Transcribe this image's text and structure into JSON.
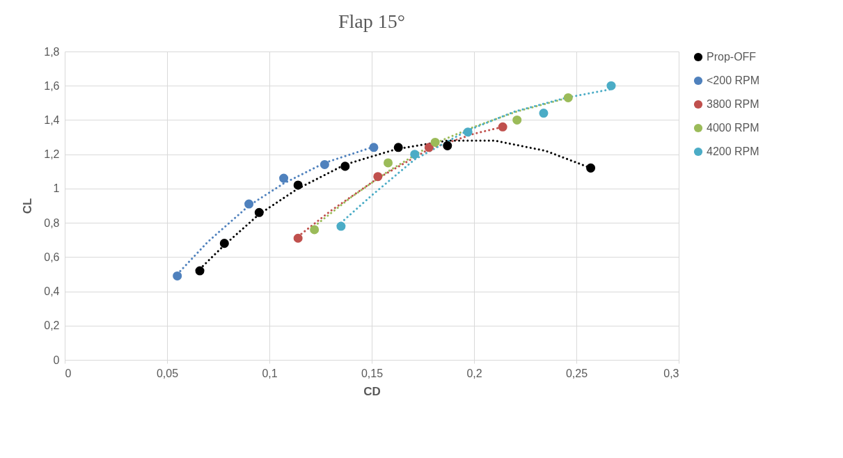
{
  "chart_data": {
    "type": "scatter",
    "title": "Flap 15°",
    "xlabel": "CD",
    "ylabel": "CL",
    "xlim": [
      0,
      0.3
    ],
    "ylim": [
      0,
      1.8
    ],
    "xticks": [
      0,
      {
        "value": 0.05,
        "label": "0,05"
      },
      {
        "value": 0.1,
        "label": "0,1"
      },
      {
        "value": 0.15,
        "label": "0,15"
      },
      {
        "value": 0.2,
        "label": "0,2"
      },
      {
        "value": 0.25,
        "label": "0,25"
      },
      {
        "value": 0.3,
        "label": "0,3"
      }
    ],
    "yticks": [
      0,
      {
        "value": 0.2,
        "label": "0,2"
      },
      {
        "value": 0.4,
        "label": "0,4"
      },
      {
        "value": 0.6,
        "label": "0,6"
      },
      {
        "value": 0.8,
        "label": "0,8"
      },
      1,
      {
        "value": 1.2,
        "label": "1,2"
      },
      {
        "value": 1.4,
        "label": "1,4"
      },
      {
        "value": 1.6,
        "label": "1,6"
      },
      {
        "value": 1.8,
        "label": "1,8"
      }
    ],
    "grid": true,
    "legend": "right",
    "marker": "circle",
    "series": [
      {
        "type": "line",
        "color": "#000000",
        "line_style": "dotted",
        "marker": "none",
        "x": [
          0.066,
          0.078,
          0.095,
          0.114,
          0.137,
          0.162,
          0.187,
          0.21,
          0.235,
          0.257
        ],
        "values": [
          0.53,
          0.67,
          0.85,
          1.0,
          1.14,
          1.23,
          1.28,
          1.28,
          1.22,
          1.12
        ]
      },
      {
        "type": "line",
        "color": "#4f81bd",
        "line_style": "dotted",
        "marker": "none",
        "x": [
          0.055,
          0.07,
          0.09,
          0.107,
          0.127,
          0.15
        ],
        "values": [
          0.5,
          0.69,
          0.9,
          1.03,
          1.15,
          1.24
        ]
      },
      {
        "type": "line",
        "color": "#c0504d",
        "line_style": "dotted",
        "marker": "none",
        "x": [
          0.114,
          0.13,
          0.153,
          0.178,
          0.2,
          0.214
        ],
        "values": [
          0.72,
          0.87,
          1.06,
          1.23,
          1.32,
          1.36
        ]
      },
      {
        "type": "line",
        "color": "#9bbb59",
        "line_style": "dotted",
        "marker": "none",
        "x": [
          0.122,
          0.14,
          0.158,
          0.18,
          0.2,
          0.221,
          0.246
        ],
        "values": [
          0.78,
          0.95,
          1.1,
          1.26,
          1.36,
          1.45,
          1.53
        ]
      },
      {
        "type": "line",
        "color": "#4bacc6",
        "line_style": "dotted",
        "marker": "none",
        "x": [
          0.135,
          0.15,
          0.171,
          0.197,
          0.22,
          0.245,
          0.267
        ],
        "values": [
          0.8,
          0.96,
          1.17,
          1.34,
          1.45,
          1.53,
          1.58
        ]
      },
      {
        "name": "Prop-OFF",
        "color": "#000000",
        "x": [
          0.066,
          0.078,
          0.095,
          0.114,
          0.137,
          0.163,
          0.187,
          0.257
        ],
        "values": [
          0.52,
          0.68,
          0.86,
          1.02,
          1.13,
          1.24,
          1.25,
          1.12
        ]
      },
      {
        "name": "<200 RPM",
        "color": "#4f81bd",
        "x": [
          0.055,
          0.09,
          0.107,
          0.127,
          0.151
        ],
        "values": [
          0.49,
          0.91,
          1.06,
          1.14,
          1.24
        ]
      },
      {
        "name": "3800 RPM",
        "color": "#c0504d",
        "x": [
          0.114,
          0.153,
          0.178,
          0.214
        ],
        "values": [
          0.71,
          1.07,
          1.24,
          1.36
        ]
      },
      {
        "name": "4000 RPM",
        "color": "#9bbb59",
        "x": [
          0.122,
          0.158,
          0.181,
          0.221,
          0.246
        ],
        "values": [
          0.76,
          1.15,
          1.27,
          1.4,
          1.53
        ]
      },
      {
        "name": "4200 RPM",
        "color": "#4bacc6",
        "x": [
          0.135,
          0.171,
          0.197,
          0.234,
          0.267
        ],
        "values": [
          0.78,
          1.2,
          1.33,
          1.44,
          1.6
        ]
      }
    ]
  }
}
